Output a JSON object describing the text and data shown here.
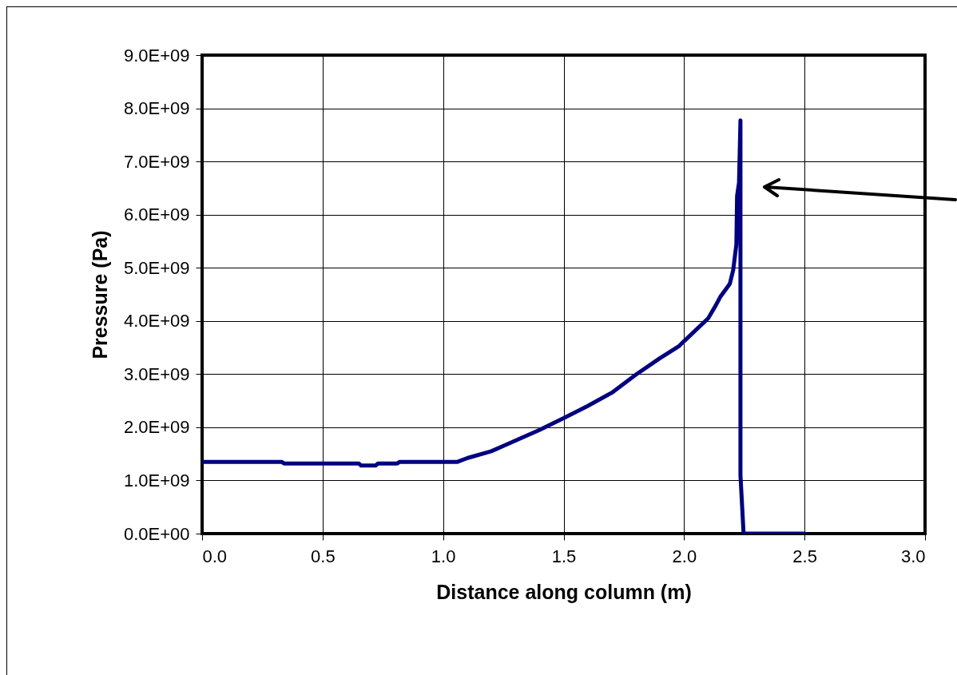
{
  "chart_data": {
    "type": "line",
    "xlabel": "Distance along column (m)",
    "ylabel": "Pressure (Pa)",
    "x": [
      0,
      0.33,
      0.34,
      0.65,
      0.66,
      0.72,
      0.73,
      0.81,
      0.82,
      1.06,
      1.1,
      1.2,
      1.25,
      1.4,
      1.5,
      1.6,
      1.7,
      1.8,
      1.9,
      1.98,
      2.0,
      2.1,
      2.13,
      2.15,
      2.19,
      2.204,
      2.217,
      2.22,
      2.228,
      2.234,
      2.234,
      2.247,
      2.5
    ],
    "series": [
      {
        "color": "#000080",
        "values": [
          1350000000,
          1350000000,
          1320000000,
          1320000000,
          1280000000,
          1280000000,
          1320000000,
          1320000000,
          1350000000,
          1350000000,
          1420000000,
          1550000000,
          1650000000,
          1950000000,
          2170000000,
          2400000000,
          2650000000,
          2990000000,
          3300000000,
          3530000000,
          3620000000,
          4050000000,
          4280000000,
          4450000000,
          4700000000,
          4960000000,
          5440000000,
          6350000000,
          6600000000,
          7770000000,
          1100000000,
          0,
          0
        ]
      }
    ],
    "xlim": [
      0,
      3
    ],
    "xticks": [
      {
        "value": 0,
        "label": "0.0"
      },
      {
        "value": 0.5,
        "label": "0.5"
      },
      {
        "value": 1,
        "label": "1.0"
      },
      {
        "value": 1.5,
        "label": "1.5"
      },
      {
        "value": 2,
        "label": "2.0"
      },
      {
        "value": 2.5,
        "label": "2.5"
      },
      {
        "value": 3,
        "label": "3.0"
      }
    ],
    "ylim": [
      0,
      9000000000
    ],
    "yticks": [
      {
        "value": 0,
        "label": "0.0E+00"
      },
      {
        "value": 1000000000,
        "label": "1.0E+09"
      },
      {
        "value": 2000000000,
        "label": "2.0E+09"
      },
      {
        "value": 3000000000,
        "label": "3.0E+09"
      },
      {
        "value": 4000000000,
        "label": "4.0E+09"
      },
      {
        "value": 5000000000,
        "label": "5.0E+09"
      },
      {
        "value": 6000000000,
        "label": "6.0E+09"
      },
      {
        "value": 7000000000,
        "label": "7.0E+09"
      },
      {
        "value": 8000000000,
        "label": "8.0E+09"
      },
      {
        "value": 9000000000,
        "label": "9.0E+09"
      }
    ],
    "grid": true,
    "marker": "none",
    "line_style": "solid"
  }
}
